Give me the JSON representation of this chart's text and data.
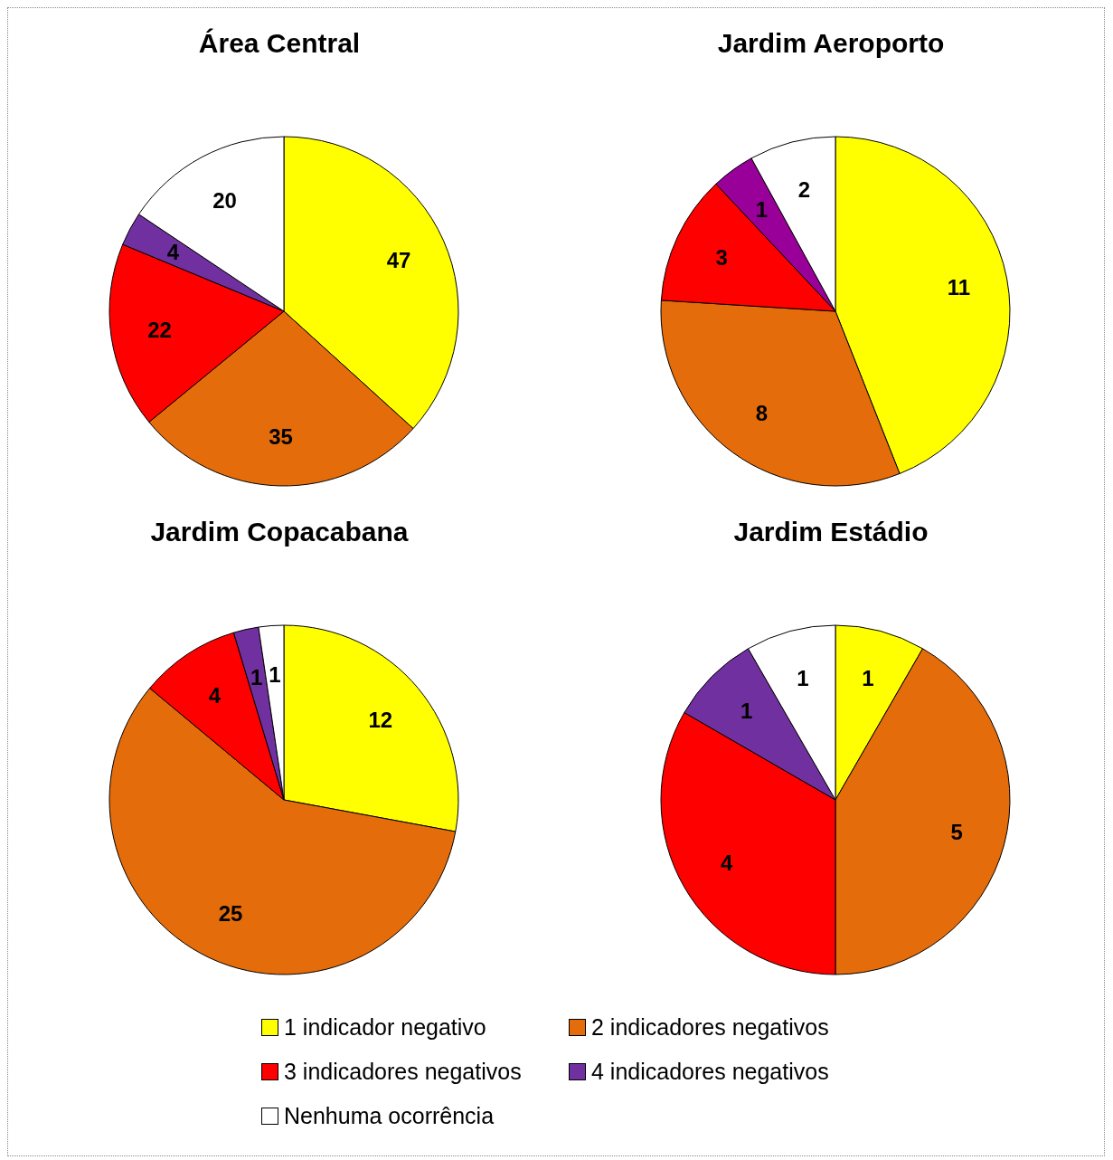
{
  "chart_data": [
    {
      "type": "pie",
      "title": "Área Central",
      "categories": [
        "1 indicador negativo",
        "2 indicadores negativos",
        "3 indicadores negativos",
        "4 indicadores negativos",
        "Nenhuma ocorrência"
      ],
      "values": [
        47,
        35,
        22,
        4,
        20
      ],
      "colors": [
        "#ffff00",
        "#e46c0a",
        "#ff0000",
        "#7030a0",
        "#ffffff"
      ],
      "data_labels": true,
      "legend": "bottom"
    },
    {
      "type": "pie",
      "title": "Jardim Aeroporto",
      "values": [
        11,
        8,
        3,
        1,
        2
      ],
      "colors": [
        "#ffff00",
        "#e46c0a",
        "#ff0000",
        "#990099",
        "#ffffff"
      ],
      "data_labels": true
    },
    {
      "type": "pie",
      "title": "Jardim Copacabana",
      "values": [
        12,
        25,
        4,
        1,
        1
      ],
      "colors": [
        "#ffff00",
        "#e46c0a",
        "#ff0000",
        "#7030a0",
        "#ffffff"
      ],
      "data_labels": true
    },
    {
      "type": "pie",
      "title": "Jardim Estádio",
      "values": [
        1,
        5,
        4,
        1,
        1
      ],
      "colors": [
        "#ffff00",
        "#e46c0a",
        "#ff0000",
        "#7030a0",
        "#ffffff"
      ],
      "data_labels": true
    }
  ]
}
